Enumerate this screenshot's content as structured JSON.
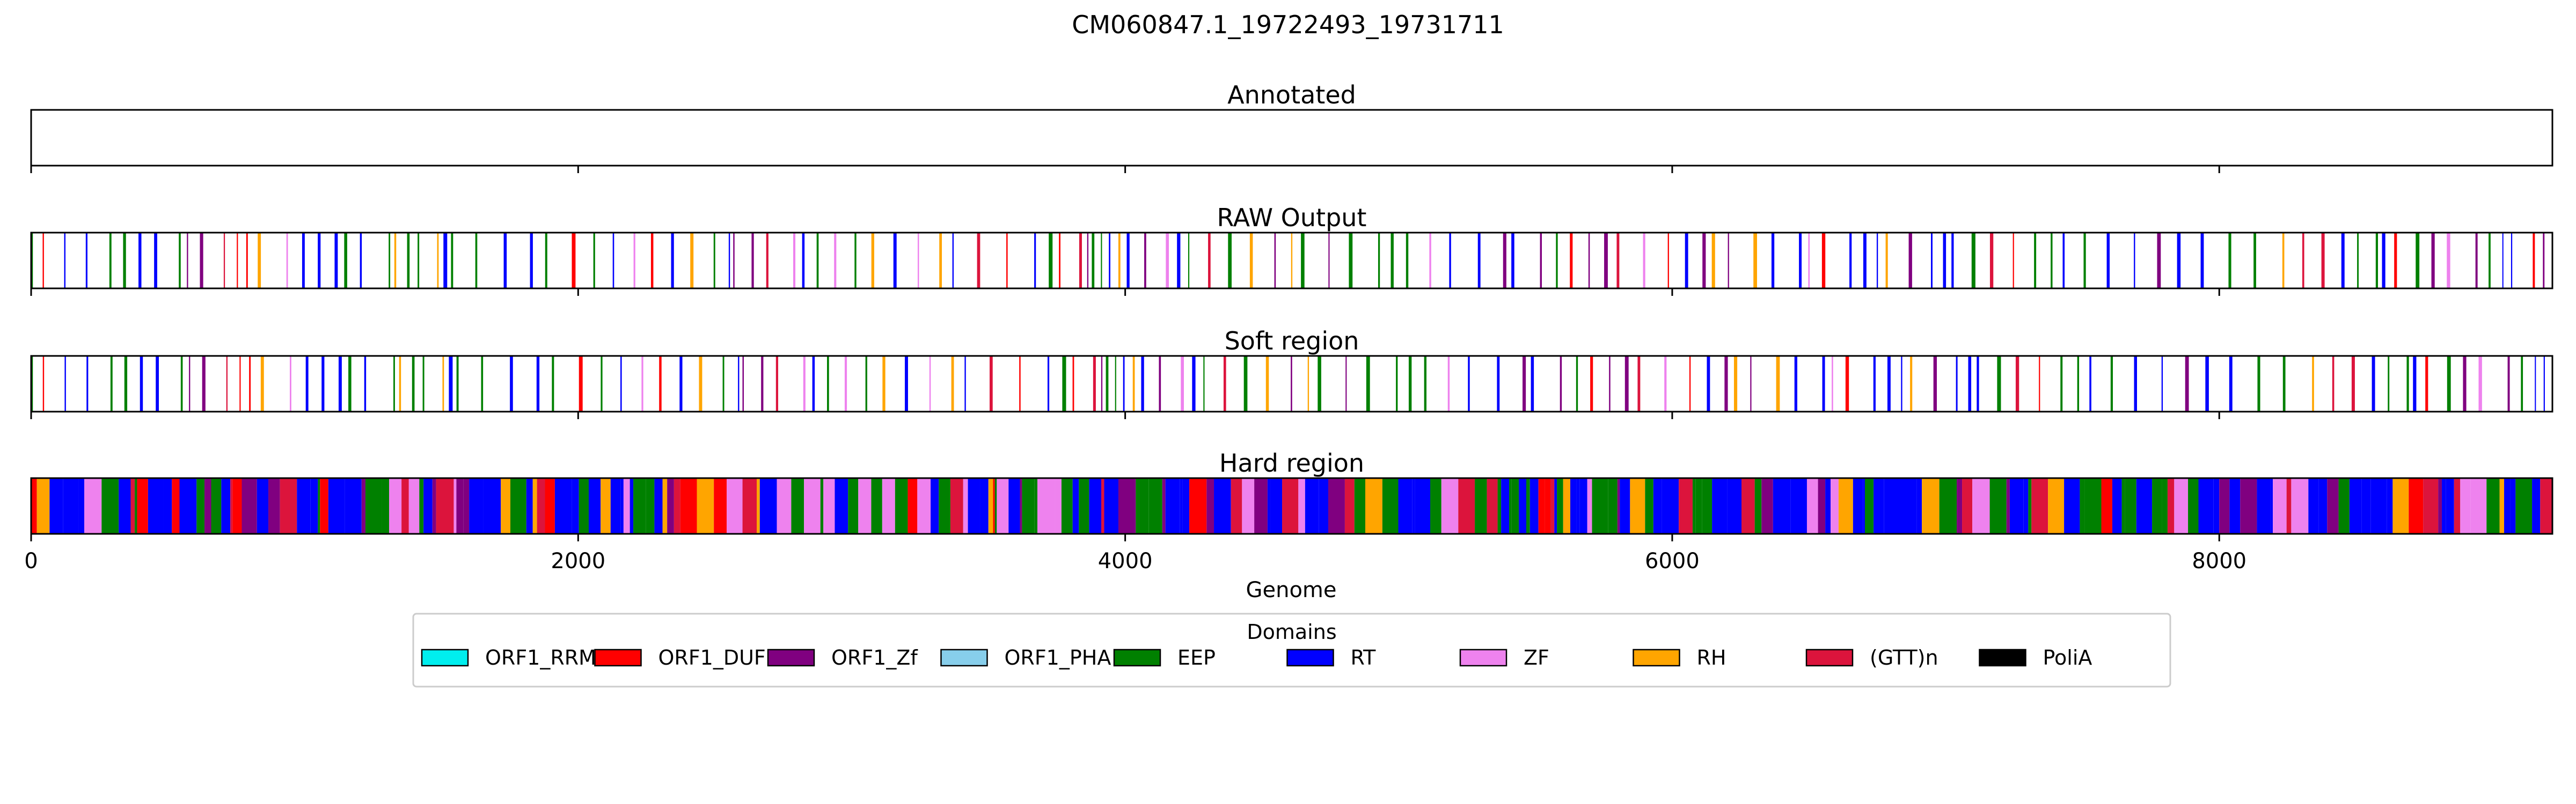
{
  "chart_data": {
    "type": "genome-track",
    "title": "CM060847.1_19722493_19731711",
    "xlabel": "Genome",
    "xlim": [
      0,
      9218
    ],
    "xticks": [
      0,
      2000,
      4000,
      6000,
      8000
    ],
    "tick_labels": [
      "0",
      "2000",
      "4000",
      "6000",
      "8000"
    ],
    "tracks": [
      {
        "name": "Annotated",
        "density": 0,
        "seed": 0
      },
      {
        "name": "RAW Output",
        "density": 0.34,
        "seed": 11
      },
      {
        "name": "Soft region",
        "density": 0.33,
        "seed": 11
      },
      {
        "name": "Hard region",
        "density": 1.0,
        "seed": 29
      }
    ],
    "legend": {
      "title": "Domains",
      "placement": "bottom-center",
      "items": [
        {
          "label": "ORF1_RRM",
          "color": "#00eeee"
        },
        {
          "label": "ORF1_DUF",
          "color": "#ff0000"
        },
        {
          "label": "ORF1_Zf",
          "color": "#800080"
        },
        {
          "label": "ORF1_PHA",
          "color": "#87ceeb"
        },
        {
          "label": "EEP",
          "color": "#008000"
        },
        {
          "label": "RT",
          "color": "#0000ff"
        },
        {
          "label": "ZF",
          "color": "#ee82ee"
        },
        {
          "label": "RH",
          "color": "#ffa500"
        },
        {
          "label": "(GTT)n",
          "color": "#dc143c"
        },
        {
          "label": "PoliA",
          "color": "#000000"
        }
      ]
    },
    "grid": false
  }
}
